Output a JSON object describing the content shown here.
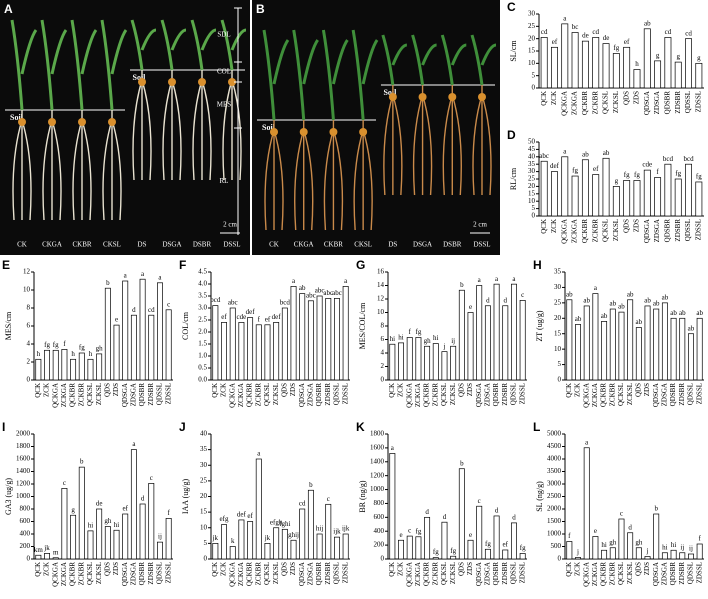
{
  "photos": [
    {
      "letter": "A",
      "labels": [
        "CK",
        "CKGA",
        "CKBR",
        "CKSL",
        "DS",
        "DSGA",
        "DSBR",
        "DSSL"
      ],
      "soil": "Soil",
      "parts": [
        "SDL",
        "COL",
        "MES",
        "RL"
      ],
      "scale": "2 cm"
    },
    {
      "letter": "B",
      "labels": [
        "CK",
        "CKGA",
        "CKBR",
        "CKSL",
        "DS",
        "DSGA",
        "DSBR",
        "DSSL"
      ],
      "soil": "Soil",
      "scale": "2 cm"
    }
  ],
  "chart_data": [
    {
      "type": "bar",
      "panel": "C",
      "ylabel": "SL/cm",
      "color": "#ffffff",
      "ylim": [
        0,
        30
      ],
      "yticks": [
        0,
        5,
        10,
        15,
        20,
        25,
        30
      ],
      "categories": [
        "QCK",
        "ZCK",
        "QCKGA",
        "ZCKGA",
        "QCKBR",
        "ZCKBR",
        "QCKSL",
        "ZCKSL",
        "QDS",
        "ZDS",
        "QDSGA",
        "ZDSGA",
        "QDSBR",
        "ZDSBR",
        "QDSSL",
        "ZDSSL"
      ],
      "values": [
        20.5,
        16.5,
        26,
        22.5,
        19,
        20.5,
        18,
        14,
        16.5,
        7.5,
        24,
        11,
        20.5,
        10.5,
        20,
        10
      ],
      "letters": [
        "cd",
        "ef",
        "a",
        "bc",
        "de",
        "cd",
        "de",
        "fg",
        "ef",
        "h",
        "ab",
        "g",
        "cd",
        "g",
        "cd",
        "g"
      ]
    },
    {
      "type": "bar",
      "panel": "D",
      "ylabel": "RL/cm",
      "color": "#ffffff",
      "ylim": [
        0,
        50
      ],
      "yticks": [
        0,
        5,
        10,
        15,
        20,
        25,
        30,
        35,
        40,
        45,
        50
      ],
      "categories": [
        "QCK",
        "ZCK",
        "QCKGA",
        "ZCKGA",
        "QCKBR",
        "ZCKBR",
        "QCKSL",
        "ZCKSL",
        "QDS",
        "ZDS",
        "QDSGA",
        "ZDSGA",
        "QDSBR",
        "ZDSBR",
        "QDSSL",
        "ZDSSL"
      ],
      "values": [
        37,
        30,
        40,
        27,
        38,
        28,
        39,
        20,
        24,
        24,
        31,
        26,
        35,
        25,
        35,
        23
      ],
      "letters": [
        "abc",
        "def",
        "a",
        "fg",
        "ab",
        "ef",
        "ab",
        "g",
        "fg",
        "fg",
        "cde",
        "f",
        "bcd",
        "fg",
        "bcd",
        "fg"
      ]
    },
    {
      "type": "bar",
      "panel": "E",
      "ylabel": "MES/cm",
      "color": "#ffffff",
      "ylim": [
        0,
        12
      ],
      "yticks": [
        0,
        2,
        4,
        6,
        8,
        10,
        12
      ],
      "categories": [
        "QCK",
        "ZCK",
        "QCKGA",
        "ZCKGA",
        "QCKBR",
        "ZCKBR",
        "QCKSL",
        "ZCKSL",
        "QDS",
        "ZDS",
        "QDSGA",
        "ZDSGA",
        "QDSBR",
        "ZDSBR",
        "QDSSL",
        "ZDSSL"
      ],
      "values": [
        2.3,
        3.3,
        3.3,
        3.4,
        2.3,
        3,
        2.3,
        2.9,
        10.2,
        6.1,
        11,
        7.2,
        11.2,
        7.2,
        10.8,
        7.8
      ],
      "letters": [
        "h",
        "fg",
        "fg",
        "f",
        "h",
        "fg",
        "h",
        "gh",
        "b",
        "e",
        "a",
        "d",
        "a",
        "cd",
        "a",
        "c"
      ]
    },
    {
      "type": "bar",
      "panel": "F",
      "ylabel": "COL/cm",
      "color": "#ffffff",
      "ylim": [
        0,
        4.5
      ],
      "yticks": [
        {
          "value": 0,
          "label": "0.0"
        },
        0.5,
        {
          "value": 1,
          "label": "1.0"
        },
        1.5,
        {
          "value": 2,
          "label": "2.0"
        },
        2.5,
        {
          "value": 3,
          "label": "3.0"
        },
        3.5,
        {
          "value": 4,
          "label": "4.0"
        },
        4.5
      ],
      "categories": [
        "QCK",
        "ZCK",
        "QCKGA",
        "ZCKGA",
        "QCKBR",
        "ZCKBR",
        "QCKSL",
        "ZCKSL",
        "QDS",
        "ZDS",
        "QDSGA",
        "ZDSGA",
        "QDSBR",
        "ZDSBR",
        "QDSSL",
        "ZDSSL"
      ],
      "values": [
        3.1,
        2.4,
        3,
        2.4,
        2.6,
        2.3,
        2.3,
        2.4,
        3,
        3.9,
        3.6,
        3.3,
        3.5,
        3.4,
        3.4,
        3.9
      ],
      "letters": [
        "bcd",
        "ef",
        "abc",
        "cde",
        "def",
        "f",
        "ef",
        "def",
        "bcd",
        "a",
        "ab",
        "abc",
        "abc",
        "abc",
        "abc",
        "a"
      ]
    },
    {
      "type": "bar",
      "panel": "G",
      "ylabel": "MES/COL/cm",
      "color": "#ffffff",
      "ylim": [
        0,
        16
      ],
      "yticks": [
        0,
        2,
        4,
        6,
        8,
        10,
        12,
        14,
        16
      ],
      "categories": [
        "QCK",
        "ZCK",
        "QCKGA",
        "ZCKGA",
        "QCKBR",
        "ZCKBR",
        "QCKSL",
        "ZCKSL",
        "QDS",
        "ZDS",
        "QDSGA",
        "ZDSGA",
        "QDSBR",
        "ZDSBR",
        "QDSSL",
        "ZDSSL"
      ],
      "values": [
        5.3,
        5.5,
        6.3,
        6.3,
        5,
        5.4,
        4.2,
        5,
        13.3,
        10,
        14,
        11,
        14.2,
        11,
        14.2,
        11.8
      ],
      "letters": [
        "hi",
        "hi",
        "f",
        "fg",
        "gh",
        "hi",
        "j",
        "ij",
        "b",
        "e",
        "a",
        "d",
        "a",
        "d",
        "a",
        "c"
      ]
    },
    {
      "type": "bar",
      "panel": "H",
      "ylabel": "ZT (ug/g)",
      "color": "#ffffff",
      "ylim": [
        0,
        35
      ],
      "yticks": [
        0,
        5,
        10,
        15,
        20,
        25,
        30,
        35
      ],
      "categories": [
        "QCK",
        "ZCK",
        "QCKGA",
        "ZCKGA",
        "QCKBR",
        "ZCKBR",
        "QCKSL",
        "ZCKSL",
        "QDS",
        "ZDS",
        "QDSGA",
        "ZDSGA",
        "QDSBR",
        "ZDSBR",
        "QDSSL",
        "ZDSSL"
      ],
      "values": [
        26,
        18,
        24,
        28,
        19,
        23,
        22,
        26,
        17,
        24,
        23,
        25,
        20,
        20,
        15,
        20
      ],
      "letters": [
        "ab",
        "ab",
        "ab",
        "a",
        "ab",
        "ab",
        "ab",
        "ab",
        "ab",
        "ab",
        "ab",
        "ab",
        "ab",
        "ab",
        "ab",
        "ab"
      ]
    },
    {
      "type": "bar",
      "panel": "I",
      "ylabel": "GA3 (ug/g)",
      "color": "#ffffff",
      "ylim": [
        0,
        2000
      ],
      "yticks": [
        0,
        200,
        400,
        600,
        800,
        1000,
        1200,
        1400,
        1600,
        1800,
        2000
      ],
      "categories": [
        "QCK",
        "ZCK",
        "QCKGA",
        "ZCKGA",
        "QCKBR",
        "ZCKBR",
        "QCKSL",
        "ZCKSL",
        "QDS",
        "ZDS",
        "QDSGA",
        "ZDSGA",
        "QDSBR",
        "ZDSBR",
        "QDSSL",
        "ZDSSL"
      ],
      "values": [
        60,
        90,
        20,
        1130,
        700,
        1470,
        450,
        800,
        520,
        460,
        720,
        1750,
        880,
        1210,
        270,
        650
      ],
      "letters": [
        "km",
        "jk",
        "m",
        "c",
        "g",
        "b",
        "hi",
        "de",
        "gh",
        "hi",
        "ef",
        "a",
        "d",
        "c",
        "ij",
        "f"
      ]
    },
    {
      "type": "bar",
      "panel": "J",
      "ylabel": "IAA (ug/g)",
      "color": "#ffffff",
      "ylim": [
        0,
        40
      ],
      "yticks": [
        0,
        5,
        10,
        15,
        20,
        25,
        30,
        35,
        40
      ],
      "categories": [
        "QCK",
        "ZCK",
        "QCKGA",
        "ZCKGA",
        "QCKBR",
        "ZCKBR",
        "QCKSL",
        "ZCKSL",
        "QDS",
        "ZDS",
        "QDSGA",
        "ZDSGA",
        "QDSBR",
        "ZDSBR",
        "QDSSL",
        "ZDSSL"
      ],
      "values": [
        5,
        11,
        4,
        12.5,
        12,
        32,
        5,
        10,
        9.5,
        6,
        16,
        22,
        8,
        17.5,
        7,
        8
      ],
      "letters": [
        "jk",
        "efg",
        "k",
        "def",
        "ef",
        "a",
        "jk",
        "efgh",
        "fghi",
        "ghij",
        "cd",
        "b",
        "hij",
        "c",
        "ijk",
        "ijk"
      ]
    },
    {
      "type": "bar",
      "panel": "K",
      "ylabel": "BR (ng/g)",
      "color": "#ffffff",
      "ylim": [
        0,
        1800
      ],
      "yticks": [
        0,
        200,
        400,
        600,
        800,
        1000,
        1200,
        1400,
        1600,
        1800
      ],
      "categories": [
        "QCK",
        "ZCK",
        "QCKGA",
        "ZCKGA",
        "QCKBR",
        "ZCKBR",
        "QCKSL",
        "ZCKSL",
        "QDS",
        "ZDS",
        "QDSGA",
        "ZDSGA",
        "QDSBR",
        "ZDSBR",
        "QDSSL",
        "ZDSSL"
      ],
      "values": [
        1520,
        270,
        330,
        320,
        600,
        20,
        530,
        40,
        1300,
        270,
        760,
        140,
        620,
        130,
        520,
        80
      ],
      "letters": [
        "a",
        "e",
        "c",
        "fg",
        "d",
        "fg",
        "d",
        "fg",
        "b",
        "e",
        "c",
        "fg",
        "d",
        "ef",
        "d",
        "fg"
      ]
    },
    {
      "type": "bar",
      "panel": "L",
      "ylabel": "SL (ng/g)",
      "color": "#ffffff",
      "ylim": [
        0,
        5000
      ],
      "yticks": [
        0,
        500,
        1000,
        1500,
        2000,
        2500,
        3000,
        3500,
        4000,
        4500,
        5000
      ],
      "categories": [
        "QCK",
        "ZCK",
        "QCKGA",
        "ZCKGA",
        "QCKBR",
        "ZCKBR",
        "QCKSL",
        "ZCKSL",
        "QDS",
        "ZDS",
        "QDSGA",
        "ZDSGA",
        "QDSBR",
        "ZDSBR",
        "QDSSL",
        "ZDSSL"
      ],
      "values": [
        700,
        60,
        4450,
        900,
        350,
        450,
        1600,
        1050,
        450,
        100,
        1800,
        250,
        350,
        250,
        200,
        600
      ],
      "letters": [
        "f",
        "j",
        "a",
        "e",
        "hi",
        "gh",
        "c",
        "d",
        "gh",
        "j",
        "b",
        "hi",
        "hi",
        "ij",
        "ij",
        "f"
      ]
    }
  ]
}
